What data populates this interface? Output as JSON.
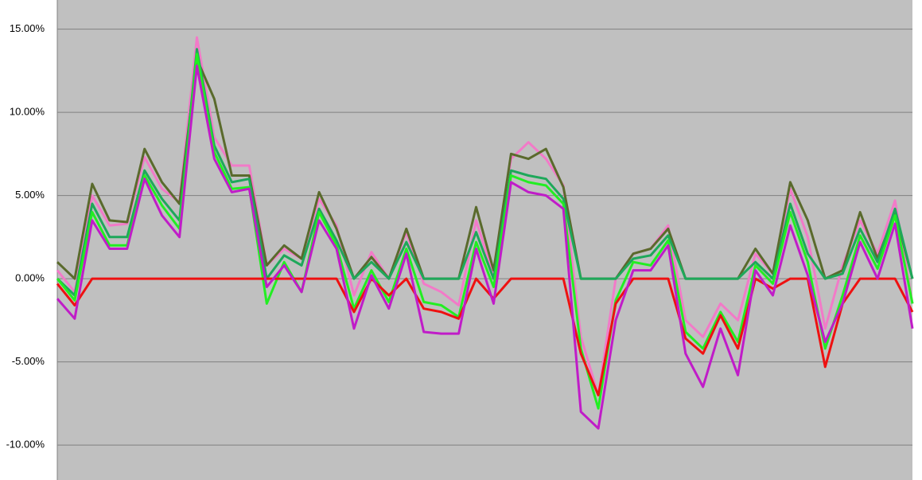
{
  "chart_data": {
    "type": "line",
    "ylim": [
      -12.1,
      16.75
    ],
    "yticks": [
      {
        "value": -10,
        "label": "-10.00%"
      },
      {
        "value": -5,
        "label": "-5.00%"
      },
      {
        "value": 0,
        "label": "0.00%"
      },
      {
        "value": 5,
        "label": "5.00%"
      },
      {
        "value": 10,
        "label": "10.00%"
      },
      {
        "value": 15,
        "label": "15.00%"
      }
    ],
    "grid": true,
    "series": [
      {
        "color": "#f27ac8",
        "values": [
          0.5,
          -0.8,
          5,
          3.2,
          3.3,
          7.3,
          5.4,
          4.6,
          14.5,
          8.5,
          6.8,
          6.8,
          0.8,
          1.8,
          1.2,
          4.8,
          3.2,
          -1,
          1.6,
          0,
          2.8,
          -0.3,
          -0.8,
          -1.6,
          3.5,
          0.2,
          7.2,
          8.2,
          7.2,
          5.6,
          -3.5,
          -7,
          0,
          1.5,
          1.8,
          3.2,
          -2.5,
          -3.5,
          -1.5,
          -2.5,
          1.5,
          0.3,
          5.4,
          2.5,
          -3,
          0.8,
          3.5,
          1.5,
          4.7,
          -1.5
        ]
      },
      {
        "color": "#5a6a2c",
        "values": [
          1,
          0,
          5.7,
          3.5,
          3.4,
          7.8,
          5.8,
          4.5,
          13.2,
          10.8,
          6.2,
          6.2,
          0.8,
          2,
          1.2,
          5.2,
          3,
          0,
          1.3,
          0,
          3,
          0,
          0,
          0,
          4.3,
          0.5,
          7.5,
          7.2,
          7.8,
          5.5,
          0,
          0,
          0,
          1.5,
          1.8,
          3,
          0,
          0,
          0,
          0,
          1.8,
          0.3,
          5.8,
          3.5,
          0,
          0.5,
          4,
          1.2,
          4,
          0
        ]
      },
      {
        "color": "#1ea85a",
        "values": [
          0,
          -1,
          4.5,
          2.5,
          2.5,
          6.5,
          4.8,
          3.5,
          13.8,
          8,
          5.8,
          6,
          0,
          1.4,
          0.8,
          4.2,
          2.3,
          0,
          1,
          0,
          2.2,
          0,
          0,
          0,
          2.8,
          0,
          6.5,
          6.2,
          6,
          4.8,
          0,
          0,
          0,
          1.2,
          1.4,
          2.6,
          0,
          0,
          0,
          0,
          1,
          0,
          4.5,
          1.5,
          0,
          0.3,
          3,
          1,
          4.2,
          0
        ]
      },
      {
        "color": "#22ee22",
        "values": [
          0,
          -1.3,
          4,
          2,
          2,
          6.2,
          4.4,
          3,
          13.5,
          7.6,
          5.4,
          5.5,
          -1.5,
          1,
          -0.8,
          4,
          2,
          -1.8,
          0.5,
          -1.4,
          1.8,
          -1.4,
          -1.6,
          -2.3,
          2.2,
          -0.5,
          6.2,
          5.8,
          5.6,
          4.5,
          -4.2,
          -7.8,
          -1.3,
          1,
          0.8,
          2.3,
          -3.2,
          -4.2,
          -2,
          -3.8,
          0.8,
          -0.3,
          4,
          1,
          -4.2,
          -1,
          2.6,
          0.6,
          3.8,
          -1.5
        ]
      },
      {
        "color": "#ee1111",
        "values": [
          -0.3,
          -1.6,
          0,
          0,
          0,
          0,
          0,
          0,
          0,
          0,
          0,
          0,
          0,
          0,
          0,
          0,
          0,
          -2,
          0,
          -1,
          0,
          -1.8,
          -2,
          -2.4,
          0,
          -1.2,
          0,
          0,
          0,
          0,
          -4.5,
          -7,
          -1.5,
          0,
          0,
          0,
          -3.6,
          -4.5,
          -2.2,
          -4.2,
          0,
          -0.6,
          0,
          0,
          -5.3,
          -1.5,
          0,
          0,
          0,
          -2
        ]
      },
      {
        "color": "#c01cc8",
        "values": [
          -1.2,
          -2.4,
          3.5,
          1.8,
          1.8,
          6,
          3.8,
          2.5,
          12.8,
          7.2,
          5.2,
          5.4,
          -0.5,
          0.8,
          -0.8,
          3.5,
          1.8,
          -3,
          0.2,
          -1.8,
          1.5,
          -3.2,
          -3.3,
          -3.3,
          1.8,
          -1.5,
          5.8,
          5.2,
          5,
          4.2,
          -8,
          -9,
          -2.5,
          0.5,
          0.5,
          2,
          -4.5,
          -6.5,
          -3,
          -5.8,
          0.5,
          -1,
          3.2,
          0.2,
          -3.8,
          -1.5,
          2.2,
          0,
          3.3,
          -3
        ]
      }
    ]
  }
}
